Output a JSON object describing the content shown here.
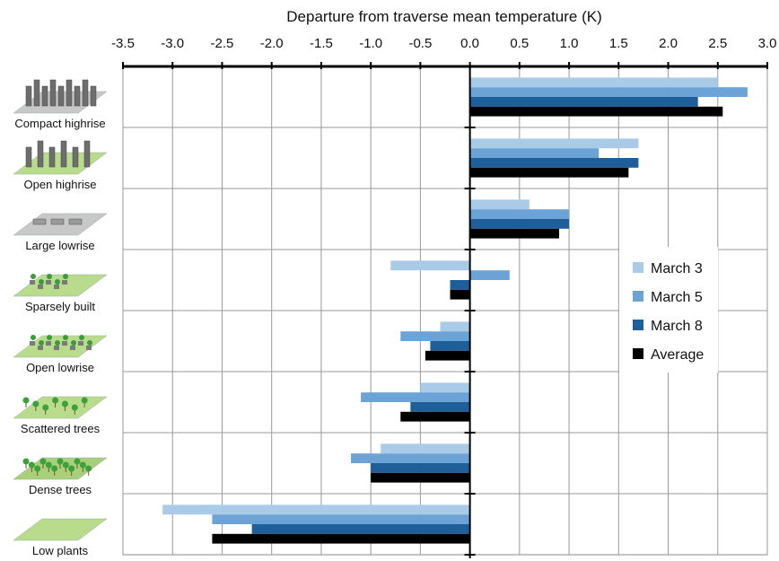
{
  "chart_data": {
    "type": "bar",
    "orientation": "horizontal",
    "xlabel": "Departure from traverse mean temperature (K)",
    "xlim": [
      -3.5,
      3.0
    ],
    "xticks": [
      -3.5,
      -3.0,
      -2.5,
      -2.0,
      -1.5,
      -1.0,
      -0.5,
      0.0,
      0.5,
      1.0,
      1.5,
      2.0,
      2.5,
      3.0
    ],
    "xtick_labels": [
      "-3.5",
      "-3.0",
      "-2.5",
      "-2.0",
      "-1.5",
      "-1.0",
      "-0.5",
      "0.0",
      "0.5",
      "1.0",
      "1.5",
      "2.0",
      "2.5",
      "3.0"
    ],
    "x_axis_position": "top",
    "grid": true,
    "legend_position": "right",
    "categories": [
      "Compact highrise",
      "Open highrise",
      "Large lowrise",
      "Sparsely built",
      "Open lowrise",
      "Scattered trees",
      "Dense trees",
      "Low plants"
    ],
    "series": [
      {
        "name": "March 3",
        "color": "#a9cbe8",
        "values": [
          2.5,
          1.7,
          0.6,
          -0.8,
          -0.3,
          -0.5,
          -0.9,
          -3.1
        ]
      },
      {
        "name": "March 5",
        "color": "#6ba3d6",
        "values": [
          2.8,
          1.3,
          1.0,
          0.4,
          -0.7,
          -1.1,
          -1.2,
          -2.6
        ]
      },
      {
        "name": "March 8",
        "color": "#1e5f99",
        "values": [
          2.3,
          1.7,
          1.0,
          -0.2,
          -0.4,
          -0.6,
          -1.0,
          -2.2
        ]
      },
      {
        "name": "Average",
        "color": "#000000",
        "values": [
          2.55,
          1.6,
          0.9,
          -0.2,
          -0.45,
          -0.7,
          -1.0,
          -2.6
        ]
      }
    ]
  }
}
